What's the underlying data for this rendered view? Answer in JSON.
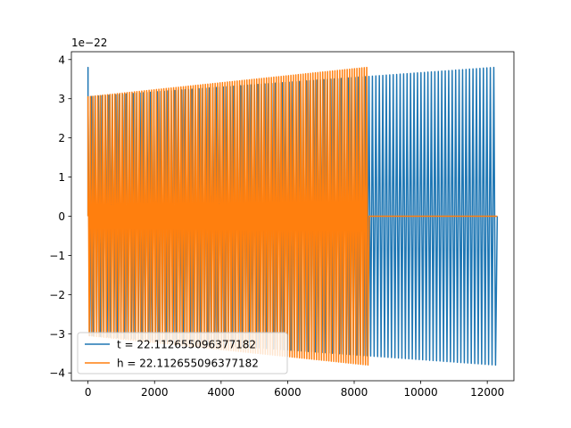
{
  "chart_data": {
    "type": "line",
    "title": "",
    "xlabel": "",
    "ylabel": "",
    "y_offset_label": "1e−22",
    "xlim": [
      -500,
      12800
    ],
    "ylim": [
      -4.2,
      4.2
    ],
    "x_ticks": [
      0,
      2000,
      4000,
      6000,
      8000,
      10000,
      12000
    ],
    "x_tick_labels": [
      "0",
      "2000",
      "4000",
      "6000",
      "8000",
      "10000",
      "12000"
    ],
    "y_ticks": [
      -4,
      -3,
      -2,
      -1,
      0,
      1,
      2,
      3,
      4
    ],
    "y_tick_labels": [
      "−4",
      "−3",
      "−2",
      "−1",
      "0",
      "1",
      "2",
      "3",
      "4"
    ],
    "grid": false,
    "legend": "lower-left",
    "series": [
      {
        "name": "t = 22.112655096377182",
        "color": "#1f77b4",
        "x_range": [
          0,
          12300
        ],
        "cycles": 118,
        "amplitude_start": 3.05,
        "amplitude_end": 3.8,
        "initial_spike": 3.8
      },
      {
        "name": "h = 22.112655096377182",
        "color": "#ff7f0e",
        "x_range": [
          0,
          8450
        ],
        "cycles": 115,
        "amplitude_start": 3.05,
        "amplitude_end": 3.8,
        "initial_spike": 1.65,
        "flat_after": [
          8450,
          12300
        ],
        "flat_value": 0
      }
    ]
  }
}
